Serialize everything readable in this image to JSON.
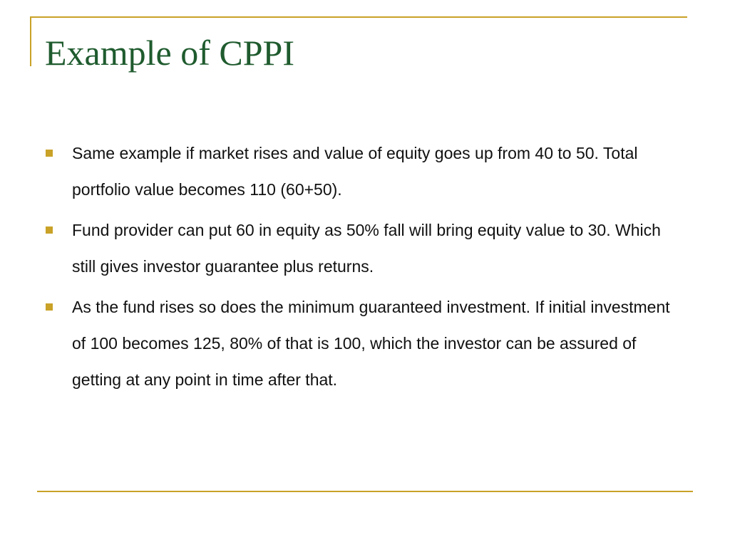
{
  "slide": {
    "title": "Example of CPPI",
    "bullets": [
      {
        "text": "Same example if market rises and value of equity goes up from 40 to 50. Total portfolio value becomes 110 (60+50)."
      },
      {
        "text": "Fund provider can put 60 in equity as 50% fall will bring equity value to 30. Which still gives investor guarantee plus returns."
      },
      {
        "text": "As the fund rises so does the minimum guaranteed investment. If initial investment of 100 becomes 125, 80% of that is 100, which the investor can be assured of getting at any point in time after that."
      }
    ]
  },
  "colors": {
    "accent_gold": "#c9a227",
    "title_green": "#1f5b2e",
    "body_text": "#111111",
    "background": "#ffffff"
  },
  "icons": {
    "bullet": "square-bullet-icon"
  }
}
